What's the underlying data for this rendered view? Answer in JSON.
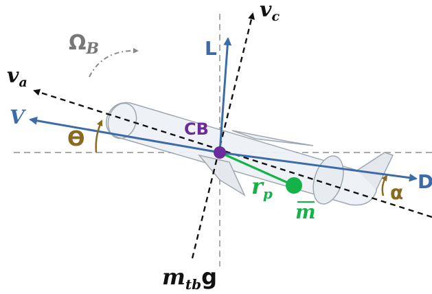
{
  "labels": {
    "omega_main": "Ω",
    "omega_sub": "B",
    "v_a_main": "v",
    "v_a_sub": "a",
    "v_c_main": "v",
    "v_c_sub": "c",
    "lift": "L",
    "velocity": "V",
    "theta": "ϴ",
    "cb": "CB",
    "drag": "D",
    "alpha": "α",
    "rp_main": "r",
    "rp_sub": "p",
    "mass": "m",
    "weight_main": "m",
    "weight_sub": "tb",
    "weight_g": "g"
  },
  "colors": {
    "force_blue": "#3b6ca8",
    "angle_brown": "#8a6a1e",
    "cb_purple": "#6a2c9a",
    "mass_green": "#14b34a",
    "omega_gray": "#777777",
    "axis_black": "#111111",
    "reference_gray": "#aaaaaa",
    "glider_outline": "#9aa3ad"
  },
  "icons": {
    "point_mass": "green-dot-icon",
    "buoyancy_center": "purple-dot-icon"
  }
}
